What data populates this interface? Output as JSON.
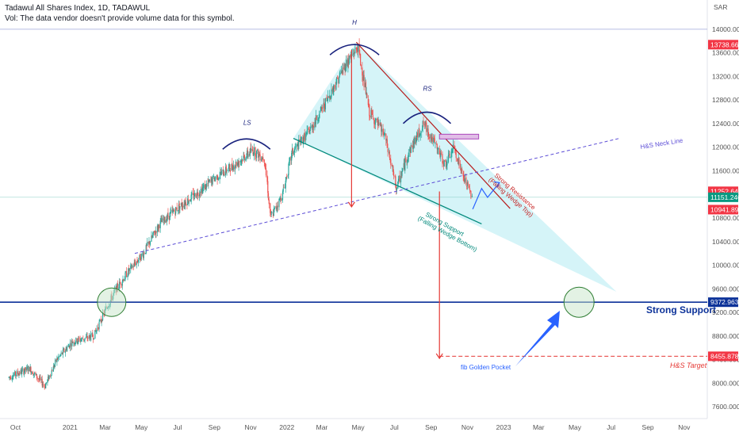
{
  "header": {
    "title": "Tadawul All Shares Index, 1D, TADAWUL",
    "subtitle": "Vol: The data vendor doesn't provide volume data for this symbol."
  },
  "currency": "SAR",
  "chart_data": {
    "type": "candlestick",
    "y_range": [
      7400,
      14200
    ],
    "y_ticks": [
      7600,
      8000,
      8400,
      8800,
      9200,
      9600,
      10000,
      10400,
      10800,
      11200,
      11600,
      12000,
      12400,
      12800,
      13200,
      13600,
      14000
    ],
    "y_tick_labels": [
      "7600.000",
      "8000.000",
      "8400.000",
      "8800.000",
      "9200.000",
      "9600.000",
      "10000.000",
      "10400.000",
      "10800.000",
      "11200.000",
      "11600.000",
      "12000.000",
      "12400.000",
      "12800.000",
      "13200.000",
      "13600.000",
      "14000.000"
    ],
    "x_tick_labels": [
      "Oct",
      "2021",
      "Mar",
      "May",
      "Jul",
      "Sep",
      "Nov",
      "2022",
      "Mar",
      "May",
      "Jul",
      "Sep",
      "Nov",
      "2023",
      "Mar",
      "May",
      "Jul",
      "Sep",
      "Nov"
    ],
    "x_tick_dates": [
      "2020-10-01",
      "2021-01-01",
      "2021-03-01",
      "2021-05-01",
      "2021-07-01",
      "2021-09-01",
      "2021-11-01",
      "2022-01-01",
      "2022-03-01",
      "2022-05-01",
      "2022-07-01",
      "2022-09-01",
      "2022-11-01",
      "2023-01-01",
      "2023-03-01",
      "2023-05-01",
      "2023-07-01",
      "2023-09-01",
      "2023-11-01"
    ],
    "price_path": [
      [
        "2020-09-20",
        8100
      ],
      [
        "2020-10-25",
        8250
      ],
      [
        "2020-11-20",
        7950
      ],
      [
        "2020-12-10",
        8400
      ],
      [
        "2021-01-05",
        8700
      ],
      [
        "2021-02-10",
        8800
      ],
      [
        "2021-03-05",
        9300
      ],
      [
        "2021-03-20",
        9600
      ],
      [
        "2021-04-10",
        9900
      ],
      [
        "2021-05-05",
        10200
      ],
      [
        "2021-06-01",
        10700
      ],
      [
        "2021-07-05",
        11000
      ],
      [
        "2021-08-01",
        11200
      ],
      [
        "2021-09-05",
        11500
      ],
      [
        "2021-10-05",
        11700
      ],
      [
        "2021-11-05",
        11950
      ],
      [
        "2021-11-25",
        11800
      ],
      [
        "2021-12-05",
        10800
      ],
      [
        "2021-12-25",
        11200
      ],
      [
        "2022-01-10",
        11900
      ],
      [
        "2022-02-10",
        12300
      ],
      [
        "2022-03-10",
        12800
      ],
      [
        "2022-04-10",
        13400
      ],
      [
        "2022-05-01",
        13700
      ],
      [
        "2022-05-20",
        12600
      ],
      [
        "2022-06-15",
        12200
      ],
      [
        "2022-07-05",
        11300
      ],
      [
        "2022-07-25",
        11900
      ],
      [
        "2022-08-20",
        12400
      ],
      [
        "2022-09-05",
        12100
      ],
      [
        "2022-09-25",
        11700
      ],
      [
        "2022-10-10",
        12000
      ],
      [
        "2022-10-25",
        11500
      ],
      [
        "2022-11-10",
        11150
      ]
    ],
    "price_tags": [
      {
        "value": "13738.666",
        "price": 13738.666,
        "color": "#f23645"
      },
      {
        "value": "11252.648",
        "price": 11252.648,
        "color": "#f23645"
      },
      {
        "value": "11151.240",
        "price": 11151.24,
        "color": "#089981"
      },
      {
        "value": "10941.896",
        "price": 10941.896,
        "color": "#f23645"
      },
      {
        "value": "9372.963",
        "price": 9372.963,
        "color": "#0c3299"
      },
      {
        "value": "8455.878",
        "price": 8455.878,
        "color": "#f23645"
      }
    ],
    "annotations": {
      "head": "H",
      "left_shoulder": "LS",
      "right_shoulder": "RS",
      "neck_line": "H&S Neck Line",
      "resistance": "Strong Resistance",
      "resistance_sub": "(Falling Wedge Top)",
      "support": "Strong Support",
      "support_sub": "(Falling Wedge Bottom)",
      "strong_support": "Strong Support",
      "target": "H&S Target",
      "fib": "fib Golden Pocket"
    },
    "colors": {
      "up": "#26a69a",
      "down": "#ef5350",
      "wedge_fill": "#b2ebf2",
      "neck": "#5b4cd6",
      "support_line": "#0c3299",
      "arrow": "#e53935",
      "blue_arrow": "#2962ff"
    }
  }
}
